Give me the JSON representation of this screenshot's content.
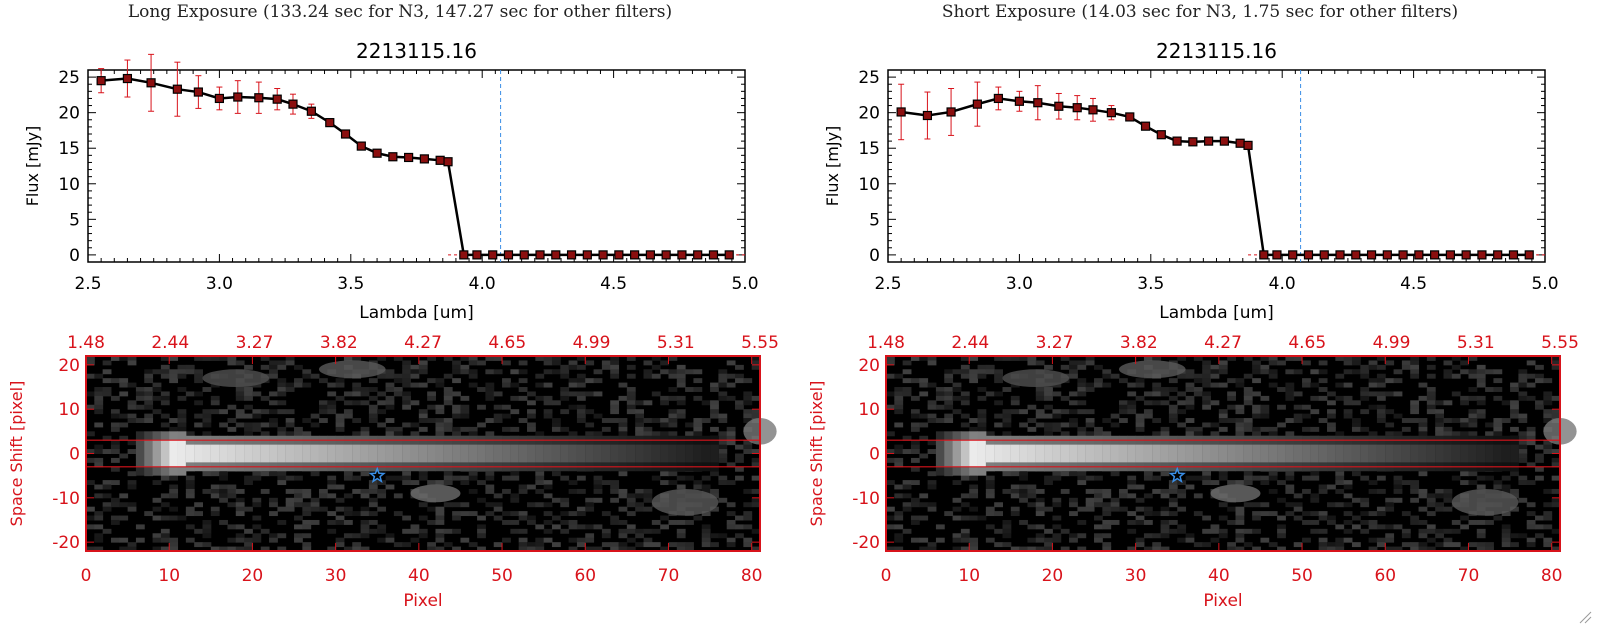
{
  "panels": [
    {
      "header": "Long Exposure (133.24 sec for N3, 147.27 sec for other filters)",
      "spectrum": {
        "title": "2213115.16",
        "xlabel": "Lambda [um]",
        "ylabel": "Flux [mJy]",
        "xlim": [
          2.5,
          5.0
        ],
        "ylim": [
          -1,
          26
        ],
        "xticks": [
          "2.5",
          "3.0",
          "3.5",
          "4.0",
          "4.5",
          "5.0"
        ],
        "yticks": [
          "0",
          "5",
          "10",
          "15",
          "20",
          "25"
        ],
        "vline_x": 4.07,
        "series": [
          {
            "x": [
              2.55,
              2.65,
              2.74,
              2.84,
              2.92,
              3.0,
              3.07,
              3.15,
              3.22,
              3.28,
              3.35,
              3.42,
              3.48,
              3.54,
              3.6,
              3.66,
              3.72,
              3.78,
              3.84,
              3.87,
              3.93,
              3.98,
              4.04,
              4.1,
              4.16,
              4.22,
              4.28,
              4.34,
              4.4,
              4.46,
              4.52,
              4.58,
              4.64,
              4.7,
              4.76,
              4.82,
              4.88,
              4.94
            ],
            "y": [
              24.5,
              24.8,
              24.2,
              23.3,
              22.9,
              22.0,
              22.2,
              22.1,
              21.9,
              21.2,
              20.2,
              18.6,
              17.0,
              15.3,
              14.3,
              13.8,
              13.7,
              13.5,
              13.3,
              13.1,
              0,
              0,
              0,
              0,
              0,
              0,
              0,
              0,
              0,
              0,
              0,
              0,
              0,
              0,
              0,
              0,
              0,
              0
            ],
            "err": [
              1.7,
              2.6,
              4.0,
              3.8,
              2.3,
              1.6,
              2.3,
              2.2,
              1.5,
              1.4,
              1.0,
              0.5,
              0.4,
              0.4,
              0.4,
              0.3,
              0.3,
              0.3,
              0.3,
              0.3,
              0,
              0,
              0,
              0,
              0,
              0,
              0,
              0,
              0,
              0,
              0,
              0,
              0,
              0,
              0,
              0,
              0,
              0
            ]
          }
        ]
      },
      "image": {
        "top_ticks": [
          "1.48",
          "2.44",
          "3.27",
          "3.82",
          "4.27",
          "4.65",
          "4.99",
          "5.31",
          "5.55"
        ],
        "xlabel": "Pixel",
        "ylabel": "Space Shift [pixel]",
        "xticks": [
          "0",
          "10",
          "20",
          "30",
          "40",
          "50",
          "60",
          "70",
          "80"
        ],
        "yticks": [
          "20",
          "10",
          "0",
          "-10",
          "-20"
        ],
        "hlines": [
          3,
          -3
        ],
        "star": [
          35,
          -5
        ]
      }
    },
    {
      "header": "Short Exposure (14.03 sec for N3, 1.75 sec for other filters)",
      "spectrum": {
        "title": "2213115.16",
        "xlabel": "Lambda [um]",
        "ylabel": "Flux [mJy]",
        "xlim": [
          2.5,
          5.0
        ],
        "ylim": [
          -1,
          26
        ],
        "xticks": [
          "2.5",
          "3.0",
          "3.5",
          "4.0",
          "4.5",
          "5.0"
        ],
        "yticks": [
          "0",
          "5",
          "10",
          "15",
          "20",
          "25"
        ],
        "vline_x": 4.07,
        "series": [
          {
            "x": [
              2.55,
              2.65,
              2.74,
              2.84,
              2.92,
              3.0,
              3.07,
              3.15,
              3.22,
              3.28,
              3.35,
              3.42,
              3.48,
              3.54,
              3.6,
              3.66,
              3.72,
              3.78,
              3.84,
              3.87,
              3.93,
              3.98,
              4.04,
              4.1,
              4.16,
              4.22,
              4.28,
              4.34,
              4.4,
              4.46,
              4.52,
              4.58,
              4.64,
              4.7,
              4.76,
              4.82,
              4.88,
              4.94
            ],
            "y": [
              20.1,
              19.6,
              20.1,
              21.2,
              22.0,
              21.6,
              21.4,
              20.9,
              20.7,
              20.4,
              20.0,
              19.4,
              18.1,
              16.9,
              16.0,
              15.9,
              16.0,
              16.0,
              15.7,
              15.4,
              0,
              0,
              0,
              0,
              0,
              0,
              0,
              0,
              0,
              0,
              0,
              0,
              0,
              0,
              0,
              0,
              0,
              0
            ],
            "err": [
              3.9,
              3.3,
              3.3,
              3.1,
              1.6,
              1.4,
              2.4,
              1.8,
              1.7,
              1.6,
              1.0,
              0.5,
              0.4,
              0.4,
              0.4,
              0.3,
              0.3,
              0.3,
              0.3,
              0.3,
              0,
              0,
              0,
              0,
              0,
              0,
              0,
              0,
              0,
              0,
              0,
              0,
              0,
              0,
              0,
              0,
              0,
              0
            ]
          }
        ]
      },
      "image": {
        "top_ticks": [
          "1.48",
          "2.44",
          "3.27",
          "3.82",
          "4.27",
          "4.65",
          "4.99",
          "5.31",
          "5.55"
        ],
        "xlabel": "Pixel",
        "ylabel": "Space Shift [pixel]",
        "xticks": [
          "0",
          "10",
          "20",
          "30",
          "40",
          "50",
          "60",
          "70",
          "80"
        ],
        "yticks": [
          "20",
          "10",
          "0",
          "-10",
          "-20"
        ],
        "hlines": [
          3,
          -3
        ],
        "star": [
          35,
          -5
        ]
      }
    }
  ],
  "colors": {
    "axis_red": "#d8131b",
    "marker_fill": "#8b0f0f",
    "line": "#000000",
    "vline": "#3a8ee6",
    "star": "#3a8ee6",
    "image_bg": "#000000"
  }
}
